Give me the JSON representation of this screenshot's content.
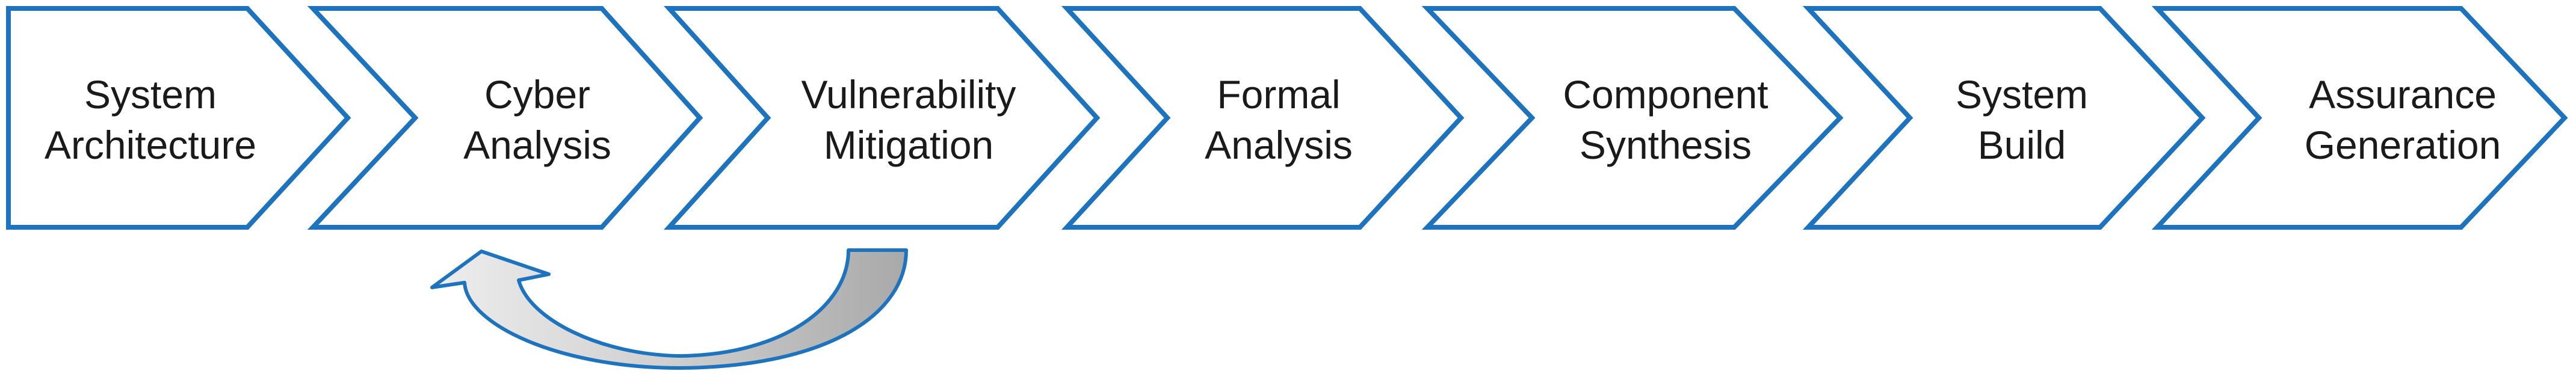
{
  "diagram": {
    "steps": [
      {
        "line1": "System",
        "line2": "Architecture"
      },
      {
        "line1": "Cyber",
        "line2": "Analysis"
      },
      {
        "line1": "Vulnerability",
        "line2": "Mitigation"
      },
      {
        "line1": "Formal",
        "line2": "Analysis"
      },
      {
        "line1": "Component",
        "line2": "Synthesis"
      },
      {
        "line1": "System",
        "line2": "Build"
      },
      {
        "line1": "Assurance",
        "line2": "Generation"
      }
    ],
    "colors": {
      "stroke": "#1e73be",
      "fill": "#ffffff",
      "text": "#1a1a1a",
      "loop_arrow_fill": "#a9a9a9"
    },
    "loop_arrow": {
      "from_step": "Vulnerability Mitigation",
      "to_step": "Cyber Analysis",
      "icon": "curved-back-arrow-icon"
    }
  }
}
